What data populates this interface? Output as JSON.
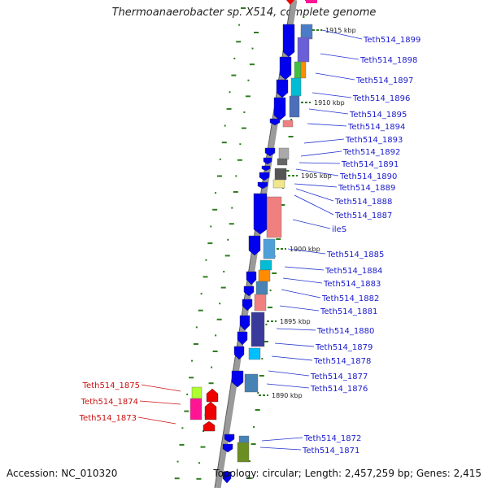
{
  "title": "Thermoanaerobacter sp. X514, complete genome",
  "accession": "Accession: NC_010320",
  "topology": "Topology: circular; Length: 2,457,259 bp; Genes: 2,415",
  "colors": {
    "forward_label": "#1a1acc",
    "reverse_label": "#cc1111",
    "tick": "#2e7d1e"
  },
  "scale_ticks": [
    "1915 kbp",
    "1910 kbp",
    "1905 kbp",
    "1900 kbp",
    "1895 kbp",
    "1890 kbp"
  ],
  "genes_right": [
    "Teth514_1899",
    "Teth514_1898",
    "Teth514_1897",
    "Teth514_1896",
    "Teth514_1895",
    "Teth514_1894",
    "Teth514_1893",
    "Teth514_1892",
    "Teth514_1891",
    "Teth514_1890",
    "Teth514_1889",
    "Teth514_1888",
    "Teth514_1887",
    "ileS",
    "Teth514_1885",
    "Teth514_1884",
    "Teth514_1883",
    "Teth514_1882",
    "Teth514_1881",
    "Teth514_1880",
    "Teth514_1879",
    "Teth514_1878",
    "Teth514_1877",
    "Teth514_1876",
    "Teth514_1872",
    "Teth514_1871"
  ],
  "genes_left": [
    "Teth514_1875",
    "Teth514_1874",
    "Teth514_1873"
  ]
}
